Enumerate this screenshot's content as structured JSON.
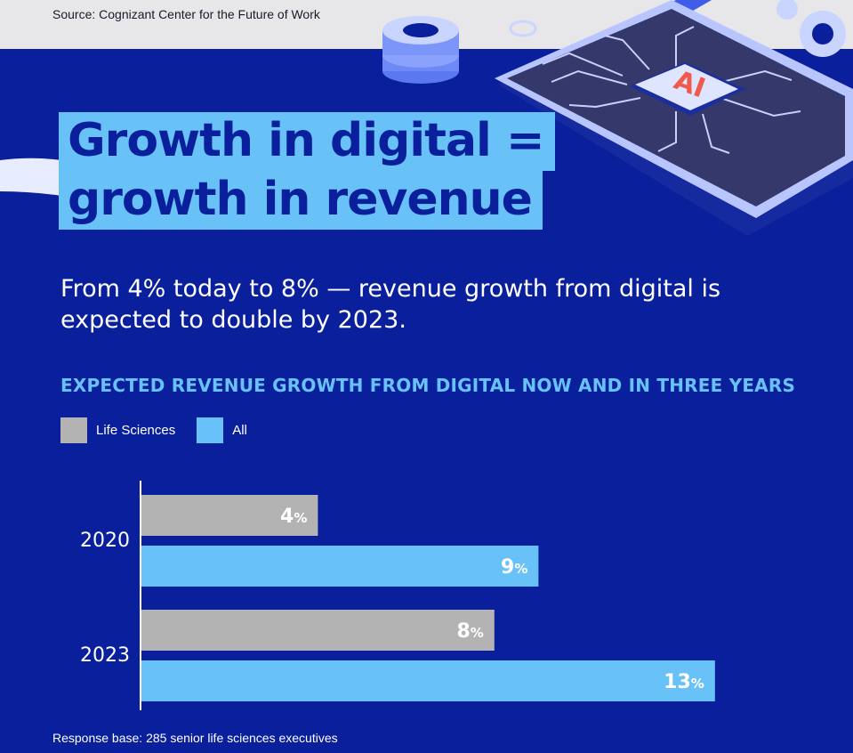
{
  "header": {
    "source": "Source: Cognizant Center for the Future of Work"
  },
  "headline": {
    "line1": "Growth in digital =",
    "line2": "growth in revenue"
  },
  "subtitle": "From 4% today to 8% — revenue growth from digital is expected to double by 2023.",
  "illustration": {
    "chip_label": "AI"
  },
  "footer": {
    "note": "Response base: 285 senior life sciences executives"
  },
  "colors": {
    "background": "#0a1f9c",
    "accent": "#69c2f7",
    "life_sciences": "#b3b3b3",
    "all": "#69c2f7"
  },
  "chart_data": {
    "type": "bar",
    "orientation": "horizontal",
    "title": "EXPECTED REVENUE GROWTH FROM DIGITAL NOW AND IN THREE YEARS",
    "categories": [
      "2020",
      "2023"
    ],
    "series": [
      {
        "name": "Life Sciences",
        "values": [
          4,
          8
        ],
        "labels": [
          "4",
          "8"
        ],
        "color": "#b3b3b3"
      },
      {
        "name": "All",
        "values": [
          9,
          13
        ],
        "labels": [
          "9",
          "13"
        ],
        "color": "#69c2f7"
      }
    ],
    "value_suffix": "%",
    "xlim": [
      0,
      14
    ],
    "grid": false,
    "legend": "top-left"
  }
}
